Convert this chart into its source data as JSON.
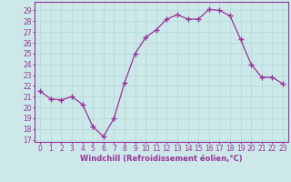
{
  "x": [
    0,
    1,
    2,
    3,
    4,
    5,
    6,
    7,
    8,
    9,
    10,
    11,
    12,
    13,
    14,
    15,
    16,
    17,
    18,
    19,
    20,
    21,
    22,
    23
  ],
  "y": [
    21.5,
    20.8,
    20.7,
    21.0,
    20.3,
    18.2,
    17.3,
    19.0,
    22.3,
    25.0,
    26.5,
    27.2,
    28.2,
    28.6,
    28.2,
    28.2,
    29.1,
    29.0,
    28.5,
    26.3,
    24.0,
    22.8,
    22.8,
    22.2
  ],
  "line_color": "#993399",
  "marker": "+",
  "marker_size": 4,
  "bg_color": "#cce8e8",
  "grid_color": "#b0d8d8",
  "xlabel": "Windchill (Refroidissement éolien,°C)",
  "ylabel_ticks": [
    17,
    18,
    19,
    20,
    21,
    22,
    23,
    24,
    25,
    26,
    27,
    28,
    29
  ],
  "xlim": [
    -0.5,
    23.5
  ],
  "ylim": [
    16.8,
    29.8
  ],
  "xlabel_color": "#993399",
  "tick_color": "#993399",
  "spine_color": "#993399",
  "tick_fontsize": 5.5,
  "xlabel_fontsize": 6.0
}
